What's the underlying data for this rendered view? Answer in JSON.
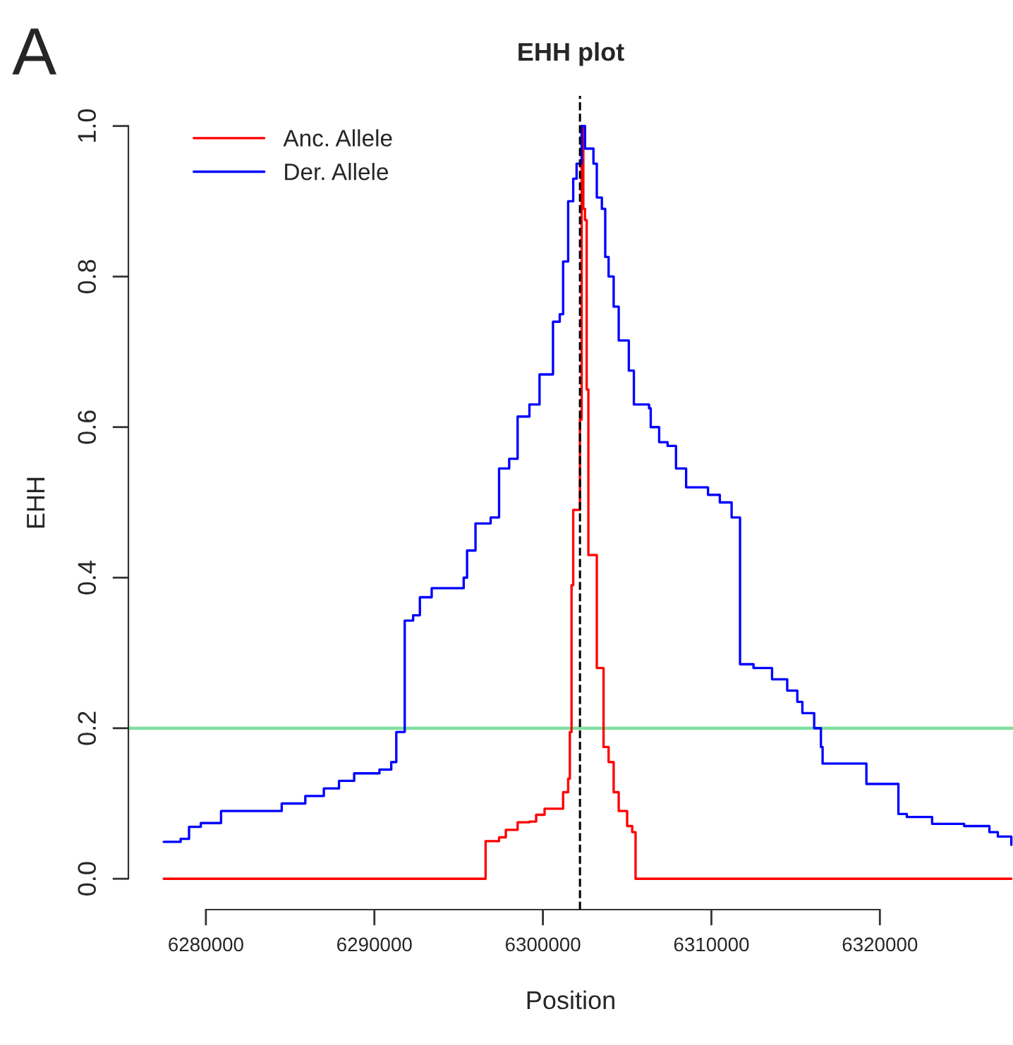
{
  "chart_data": {
    "type": "step",
    "title": "EHH plot",
    "xlabel": "Position",
    "ylabel": "EHH",
    "annotations": [
      "A"
    ],
    "xlim": [
      6275400,
      6327900
    ],
    "ylim": [
      -0.041,
      1.04
    ],
    "xticks": [
      6280000,
      6290000,
      6300000,
      6310000,
      6320000
    ],
    "yticks": [
      {
        "value": 0,
        "label": "0.0"
      },
      {
        "value": 0.2,
        "label": "0.2"
      },
      {
        "value": 0.4,
        "label": "0.4"
      },
      {
        "value": 0.6,
        "label": "0.6"
      },
      {
        "value": 0.8,
        "label": "0.8"
      },
      {
        "value": 1,
        "label": "1.0"
      }
    ],
    "grid": false,
    "legend": "top left",
    "marker": "none",
    "line_style": "solid",
    "ref_lines": [
      {
        "axis": "y",
        "value": 0.2,
        "color": "#80e0a0",
        "line_style": "solid"
      },
      {
        "axis": "x",
        "value": 6302200,
        "color": "#000000",
        "line_style": "dashed"
      }
    ],
    "series": [
      {
        "name": "Anc. Allele",
        "color": "#ff0000",
        "x": [
          6277500,
          6296600,
          6297400,
          6297800,
          6298500,
          6299200,
          6299600,
          6300100,
          6301200,
          6301500,
          6301600,
          6301700,
          6301800,
          6302200,
          6302300,
          6302400,
          6302500,
          6302600,
          6302700,
          6303200,
          6303600,
          6303900,
          6304200,
          6304500,
          6305000,
          6305300,
          6305500,
          6327800
        ],
        "values": [
          0,
          0.05,
          0.055,
          0.065,
          0.075,
          0.076,
          0.085,
          0.093,
          0.115,
          0.133,
          0.195,
          0.39,
          0.49,
          0.61,
          1.0,
          0.89,
          0.875,
          0.65,
          0.43,
          0.28,
          0.175,
          0.155,
          0.115,
          0.09,
          0.07,
          0.062,
          0,
          0
        ]
      },
      {
        "name": "Der. Allele",
        "color": "#0000ff",
        "x": [
          6277500,
          6278500,
          6279000,
          6279700,
          6280900,
          6284500,
          6285900,
          6287000,
          6287900,
          6288800,
          6290300,
          6291000,
          6291300,
          6291800,
          6292300,
          6292700,
          6293400,
          6295300,
          6295500,
          6296000,
          6296900,
          6297400,
          6298000,
          6298500,
          6299200,
          6299800,
          6300600,
          6301000,
          6301200,
          6301500,
          6301800,
          6302000,
          6302300,
          6302500,
          6303000,
          6303200,
          6303500,
          6303700,
          6303900,
          6304200,
          6304500,
          6305100,
          6305400,
          6306300,
          6306400,
          6306900,
          6307400,
          6307900,
          6308500,
          6309800,
          6310500,
          6311200,
          6311700,
          6312500,
          6313600,
          6314500,
          6315100,
          6315400,
          6316100,
          6316500,
          6316600,
          6319200,
          6321100,
          6321600,
          6323100,
          6325000,
          6326500,
          6327000,
          6327800
        ],
        "values": [
          0.049,
          0.053,
          0.069,
          0.074,
          0.09,
          0.1,
          0.11,
          0.12,
          0.13,
          0.14,
          0.145,
          0.155,
          0.195,
          0.343,
          0.35,
          0.374,
          0.386,
          0.4,
          0.436,
          0.472,
          0.48,
          0.545,
          0.558,
          0.614,
          0.63,
          0.67,
          0.74,
          0.75,
          0.82,
          0.9,
          0.93,
          0.95,
          1.0,
          0.97,
          0.95,
          0.905,
          0.89,
          0.826,
          0.8,
          0.76,
          0.715,
          0.675,
          0.63,
          0.625,
          0.6,
          0.58,
          0.575,
          0.545,
          0.52,
          0.51,
          0.5,
          0.48,
          0.285,
          0.28,
          0.265,
          0.25,
          0.235,
          0.22,
          0.2,
          0.175,
          0.153,
          0.126,
          0.086,
          0.082,
          0.073,
          0.07,
          0.062,
          0.056,
          0.045
        ]
      }
    ]
  }
}
